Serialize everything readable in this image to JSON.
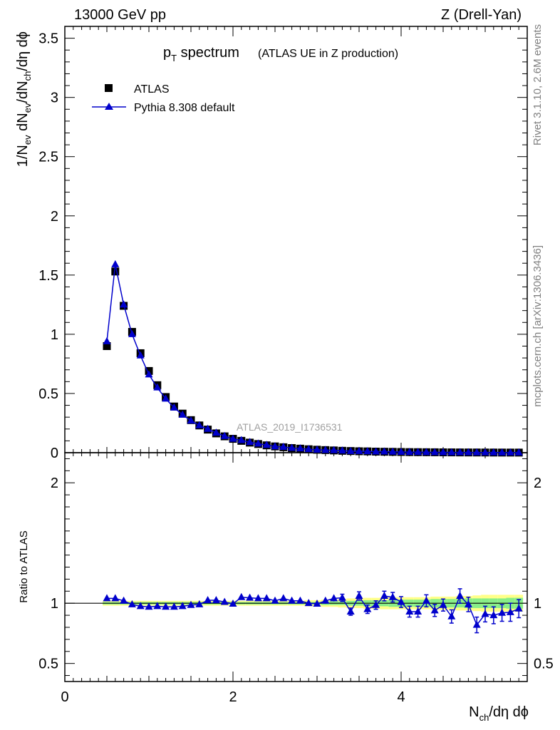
{
  "header": {
    "left": "13000 GeV pp",
    "right": "Z (Drell-Yan)"
  },
  "title": {
    "main_p": "p",
    "main_sub": "T",
    "main_rest": " spectrum",
    "paren": "(ATLAS UE in Z production)"
  },
  "side": {
    "rivet": "Rivet 3.1.10,  2.6M events",
    "mcplots": "mcplots.cern.ch [arXiv:1306.3436]"
  },
  "watermark": "ATLAS_2019_I1736531",
  "legend": {
    "data_label": "ATLAS",
    "mc_label": "Pythia 8.308 default"
  },
  "axes": {
    "y_main_label": {
      "a": "1/N",
      "a_sub": "ev",
      "b": " dN",
      "b_sub": "ev",
      "c": "/dN",
      "c_sub": "ch",
      "d": "/dη dϕ"
    },
    "y_ratio_label": "Ratio to ATLAS",
    "x_label": {
      "a": "N",
      "a_sub": "ch",
      "b": "/dη dϕ"
    }
  },
  "colors": {
    "mc": "#0000cc",
    "data": "#000000",
    "band_inner": "#88ee88",
    "band_outer": "#ffff88"
  },
  "chart_data": [
    {
      "type": "scatter",
      "panel": "main",
      "xlim": [
        0,
        5.5
      ],
      "ylim": [
        0,
        3.6
      ],
      "x_ticks": [
        "0",
        "2",
        "4"
      ],
      "y_ticks": [
        "0",
        "0.5",
        "1",
        "1.5",
        "2",
        "2.5",
        "3",
        "3.5"
      ],
      "x": [
        0.5,
        0.6,
        0.7,
        0.8,
        0.9,
        1.0,
        1.1,
        1.2,
        1.3,
        1.4,
        1.5,
        1.6,
        1.7,
        1.8,
        1.9,
        2.0,
        2.1,
        2.2,
        2.3,
        2.4,
        2.5,
        2.6,
        2.7,
        2.8,
        2.9,
        3.0,
        3.1,
        3.2,
        3.3,
        3.4,
        3.5,
        3.6,
        3.7,
        3.8,
        3.9,
        4.0,
        4.1,
        4.2,
        4.3,
        4.4,
        4.5,
        4.6,
        4.7,
        4.8,
        4.9,
        5.0,
        5.1,
        5.2,
        5.3,
        5.4
      ],
      "series": [
        {
          "name": "ATLAS",
          "marker": "square",
          "values": [
            0.9,
            1.53,
            1.24,
            1.02,
            0.84,
            0.69,
            0.57,
            0.47,
            0.39,
            0.33,
            0.275,
            0.23,
            0.195,
            0.163,
            0.138,
            0.117,
            0.1,
            0.085,
            0.073,
            0.062,
            0.053,
            0.046,
            0.039,
            0.034,
            0.029,
            0.025,
            0.022,
            0.019,
            0.016,
            0.014,
            0.012,
            0.011,
            0.009,
            0.008,
            0.007,
            0.006,
            0.005,
            0.0045,
            0.004,
            0.0035,
            0.003,
            0.0026,
            0.0022,
            0.0019,
            0.0017,
            0.0015,
            0.0013,
            0.0011,
            0.001,
            0.0009
          ]
        },
        {
          "name": "Pythia 8.308 default",
          "marker": "triangle",
          "values": [
            0.94,
            1.59,
            1.25,
            1.0,
            0.82,
            0.66,
            0.55,
            0.455,
            0.38,
            0.32,
            0.27,
            0.23,
            0.2,
            0.168,
            0.14,
            0.117,
            0.105,
            0.089,
            0.076,
            0.065,
            0.053,
            0.048,
            0.04,
            0.035,
            0.029,
            0.025,
            0.022,
            0.02,
            0.017,
            0.013,
            0.013,
            0.011,
            0.009,
            0.009,
            0.0074,
            0.006,
            0.0047,
            0.0042,
            0.0041,
            0.0033,
            0.003,
            0.0024,
            0.0024,
            0.0019,
            0.0014,
            0.0014,
            0.0012,
            0.001,
            0.0009,
            0.00086
          ]
        }
      ]
    },
    {
      "type": "scatter",
      "panel": "ratio",
      "xlabel": "Nch/dη dϕ",
      "ylabel": "Ratio to ATLAS",
      "xlim": [
        0,
        5.5
      ],
      "ylim": [
        0.35,
        2.25
      ],
      "x_ticks": [
        "0",
        "2",
        "4"
      ],
      "y_ticks": [
        "0.5",
        "1",
        "2"
      ],
      "x": [
        0.5,
        0.6,
        0.7,
        0.8,
        0.9,
        1.0,
        1.1,
        1.2,
        1.3,
        1.4,
        1.5,
        1.6,
        1.7,
        1.8,
        1.9,
        2.0,
        2.1,
        2.2,
        2.3,
        2.4,
        2.5,
        2.6,
        2.7,
        2.8,
        2.9,
        3.0,
        3.1,
        3.2,
        3.3,
        3.4,
        3.5,
        3.6,
        3.7,
        3.8,
        3.9,
        4.0,
        4.1,
        4.2,
        4.3,
        4.4,
        4.5,
        4.6,
        4.7,
        4.8,
        4.9,
        5.0,
        5.1,
        5.2,
        5.3,
        5.4
      ],
      "band_inner": [
        0.01,
        0.01,
        0.01,
        0.01,
        0.01,
        0.01,
        0.01,
        0.01,
        0.01,
        0.01,
        0.01,
        0.01,
        0.01,
        0.01,
        0.01,
        0.01,
        0.01,
        0.01,
        0.01,
        0.01,
        0.01,
        0.01,
        0.01,
        0.01,
        0.01,
        0.01,
        0.015,
        0.015,
        0.015,
        0.02,
        0.02,
        0.025,
        0.025,
        0.025,
        0.03,
        0.03,
        0.03,
        0.03,
        0.03,
        0.035,
        0.035,
        0.035,
        0.035,
        0.04,
        0.04,
        0.04,
        0.04,
        0.04,
        0.045,
        0.045
      ],
      "band_outer": [
        0.02,
        0.02,
        0.02,
        0.02,
        0.02,
        0.02,
        0.02,
        0.02,
        0.02,
        0.02,
        0.02,
        0.02,
        0.02,
        0.02,
        0.02,
        0.02,
        0.02,
        0.02,
        0.02,
        0.02,
        0.02,
        0.02,
        0.02,
        0.02,
        0.025,
        0.025,
        0.03,
        0.03,
        0.035,
        0.04,
        0.04,
        0.045,
        0.045,
        0.05,
        0.05,
        0.05,
        0.05,
        0.05,
        0.05,
        0.055,
        0.055,
        0.055,
        0.06,
        0.06,
        0.065,
        0.07,
        0.07,
        0.07,
        0.07,
        0.07
      ],
      "series": [
        {
          "name": "Pythia 8.308 default / ATLAS",
          "values": [
            1.04,
            1.04,
            1.02,
            0.99,
            0.975,
            0.97,
            0.975,
            0.97,
            0.97,
            0.975,
            0.985,
            0.99,
            1.025,
            1.025,
            1.01,
            0.995,
            1.05,
            1.045,
            1.04,
            1.04,
            1.02,
            1.04,
            1.02,
            1.02,
            1.0,
            0.995,
            1.02,
            1.04,
            1.045,
            0.93,
            1.06,
            0.95,
            0.985,
            1.06,
            1.05,
            1.01,
            0.93,
            0.93,
            1.02,
            0.94,
            0.985,
            0.89,
            1.06,
            0.99,
            0.82,
            0.91,
            0.9,
            0.92,
            0.925,
            0.955
          ],
          "errors": [
            0.01,
            0.01,
            0.01,
            0.01,
            0.01,
            0.01,
            0.01,
            0.01,
            0.01,
            0.01,
            0.01,
            0.01,
            0.01,
            0.01,
            0.01,
            0.01,
            0.01,
            0.015,
            0.015,
            0.015,
            0.015,
            0.015,
            0.015,
            0.02,
            0.02,
            0.02,
            0.025,
            0.025,
            0.03,
            0.03,
            0.035,
            0.035,
            0.035,
            0.04,
            0.04,
            0.045,
            0.045,
            0.045,
            0.05,
            0.05,
            0.05,
            0.055,
            0.06,
            0.06,
            0.065,
            0.065,
            0.07,
            0.07,
            0.075,
            0.075
          ]
        }
      ]
    }
  ]
}
